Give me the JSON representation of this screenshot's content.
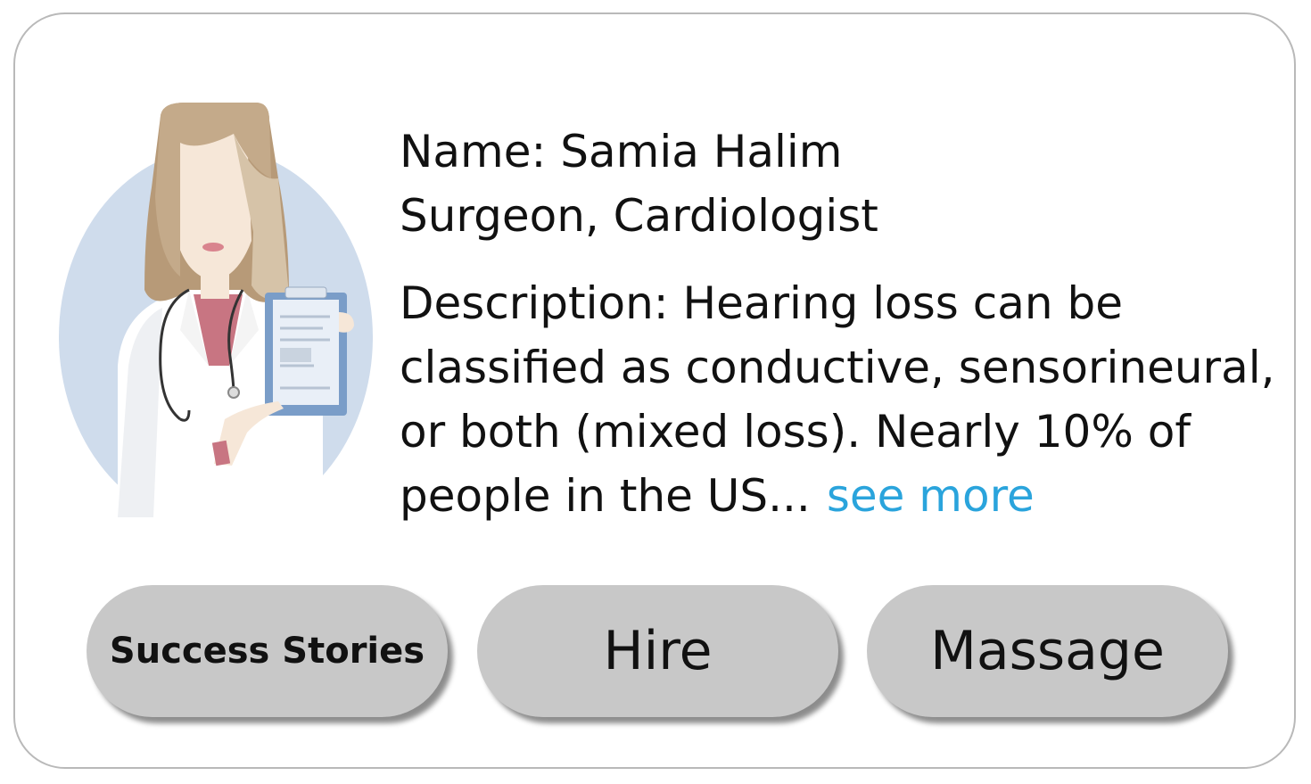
{
  "profile": {
    "name_line": "Name: Samia Halim",
    "role_line": "Surgeon, Cardiologist",
    "description_lines": [
      "Description: Hearing loss can be",
      "classified as conductive, sensorineural,",
      "or both (mixed loss). Nearly 10% of",
      "people in the US..."
    ],
    "see_more_label": "see more",
    "avatar_icon": "doctor-avatar-icon"
  },
  "actions": {
    "success_stories_label": "Success Stories",
    "hire_label": "Hire",
    "massage_label": "Massage"
  },
  "colors": {
    "link": "#2aa4dc",
    "button_bg": "#c8c8c8",
    "avatar_bg": "#cfdcec"
  }
}
